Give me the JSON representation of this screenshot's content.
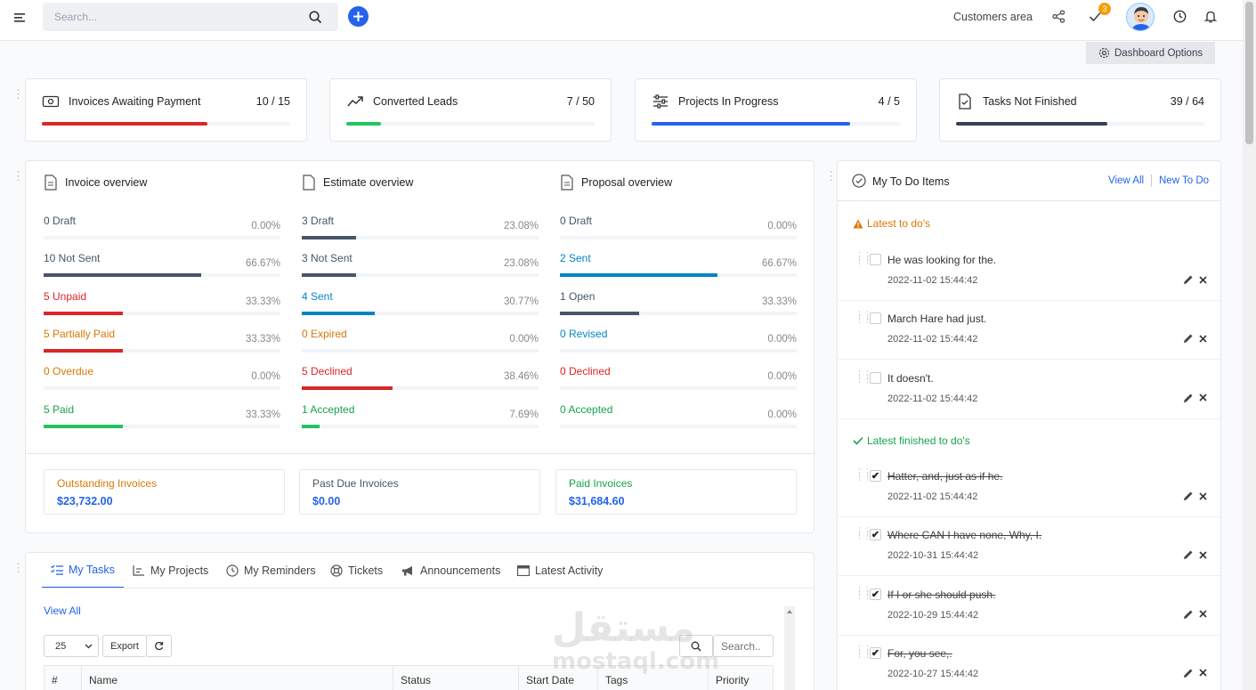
{
  "topbar": {
    "search_placeholder": "Search...",
    "customers_area": "Customers area",
    "notification_count": "3",
    "dashboard_options": "Dashboard Options"
  },
  "stats": [
    {
      "title": "Invoices Awaiting Payment",
      "value": "10 / 15",
      "progress": 0.667,
      "color": "#dc2626"
    },
    {
      "title": "Converted Leads",
      "value": "7 / 50",
      "progress": 0.14,
      "color": "#22c55e"
    },
    {
      "title": "Projects In Progress",
      "value": "4 / 5",
      "progress": 0.8,
      "color": "#2563eb"
    },
    {
      "title": "Tasks Not Finished",
      "value": "39 / 64",
      "progress": 0.609,
      "color": "#334155"
    }
  ],
  "overview": {
    "invoice": {
      "title": "Invoice overview",
      "rows": [
        {
          "label": "0 Draft",
          "pct": "0.00%",
          "value": 0,
          "color": "#475569",
          "label_color": "#475569"
        },
        {
          "label": "10 Not Sent",
          "pct": "66.67%",
          "value": 0.6667,
          "color": "#475569",
          "label_color": "#475569"
        },
        {
          "label": "5 Unpaid",
          "pct": "33.33%",
          "value": 0.3333,
          "color": "#dc2626",
          "label_color": "#dc2626"
        },
        {
          "label": "5 Partially Paid",
          "pct": "33.33%",
          "value": 0.3333,
          "color": "#dc2626",
          "label_color": "#d97706"
        },
        {
          "label": "0 Overdue",
          "pct": "0.00%",
          "value": 0,
          "color": "#d97706",
          "label_color": "#d97706"
        },
        {
          "label": "5 Paid",
          "pct": "33.33%",
          "value": 0.3333,
          "color": "#22c55e",
          "label_color": "#16a34a"
        }
      ]
    },
    "estimate": {
      "title": "Estimate overview",
      "rows": [
        {
          "label": "3 Draft",
          "pct": "23.08%",
          "value": 0.2308,
          "color": "#475569",
          "label_color": "#475569"
        },
        {
          "label": "3 Not Sent",
          "pct": "23.08%",
          "value": 0.2308,
          "color": "#475569",
          "label_color": "#475569"
        },
        {
          "label": "4 Sent",
          "pct": "30.77%",
          "value": 0.3077,
          "color": "#0284c7",
          "label_color": "#0284c7"
        },
        {
          "label": "0 Expired",
          "pct": "0.00%",
          "value": 0,
          "color": "#d97706",
          "label_color": "#d97706"
        },
        {
          "label": "5 Declined",
          "pct": "38.46%",
          "value": 0.3846,
          "color": "#dc2626",
          "label_color": "#dc2626"
        },
        {
          "label": "1 Accepted",
          "pct": "7.69%",
          "value": 0.0769,
          "color": "#22c55e",
          "label_color": "#16a34a"
        }
      ]
    },
    "proposal": {
      "title": "Proposal overview",
      "rows": [
        {
          "label": "0 Draft",
          "pct": "0.00%",
          "value": 0,
          "color": "#475569",
          "label_color": "#475569"
        },
        {
          "label": "2 Sent",
          "pct": "66.67%",
          "value": 0.6667,
          "color": "#0284c7",
          "label_color": "#0284c7"
        },
        {
          "label": "1 Open",
          "pct": "33.33%",
          "value": 0.3333,
          "color": "#475569",
          "label_color": "#475569"
        },
        {
          "label": "0 Revised",
          "pct": "0.00%",
          "value": 0,
          "color": "#0284c7",
          "label_color": "#0284c7"
        },
        {
          "label": "0 Declined",
          "pct": "0.00%",
          "value": 0,
          "color": "#dc2626",
          "label_color": "#dc2626"
        },
        {
          "label": "0 Accepted",
          "pct": "0.00%",
          "value": 0,
          "color": "#22c55e",
          "label_color": "#16a34a"
        }
      ]
    }
  },
  "summary": [
    {
      "label": "Outstanding Invoices",
      "value": "$23,732.00",
      "label_color": "#d97706"
    },
    {
      "label": "Past Due Invoices",
      "value": "$0.00",
      "label_color": "#475569"
    },
    {
      "label": "Paid Invoices",
      "value": "$31,684.60",
      "label_color": "#16a34a"
    }
  ],
  "tabs": [
    "My Tasks",
    "My Projects",
    "My Reminders",
    "Tickets",
    "Announcements",
    "Latest Activity"
  ],
  "tasks": {
    "view_all": "View All",
    "page_size": "25",
    "export": "Export",
    "search_placeholder": "Search..",
    "columns": [
      "#",
      "Name",
      "Status",
      "Start Date",
      "Tags",
      "Priority"
    ]
  },
  "todo": {
    "title": "My To Do Items",
    "view_all": "View All",
    "new_todo": "New To Do",
    "latest_title": "Latest to do's",
    "finished_title": "Latest finished to do's",
    "latest": [
      {
        "text": "He was looking for the.",
        "date": "2022-11-02 15:44:42"
      },
      {
        "text": "March Hare had just.",
        "date": "2022-11-02 15:44:42"
      },
      {
        "text": "It doesn't.",
        "date": "2022-11-02 15:44:42"
      }
    ],
    "finished": [
      {
        "text": "Hatter, and, just as if he.",
        "date": "2022-11-02 15:44:42"
      },
      {
        "text": "Where CAN I have none, Why, I.",
        "date": "2022-10-31 15:44:42"
      },
      {
        "text": "If I or she should push.",
        "date": "2022-10-29 15:44:42"
      },
      {
        "text": "For, you see,.",
        "date": "2022-10-27 15:44:42"
      }
    ]
  },
  "watermark": {
    "arabic": "مستقل",
    "latin": "mostaql.com"
  }
}
